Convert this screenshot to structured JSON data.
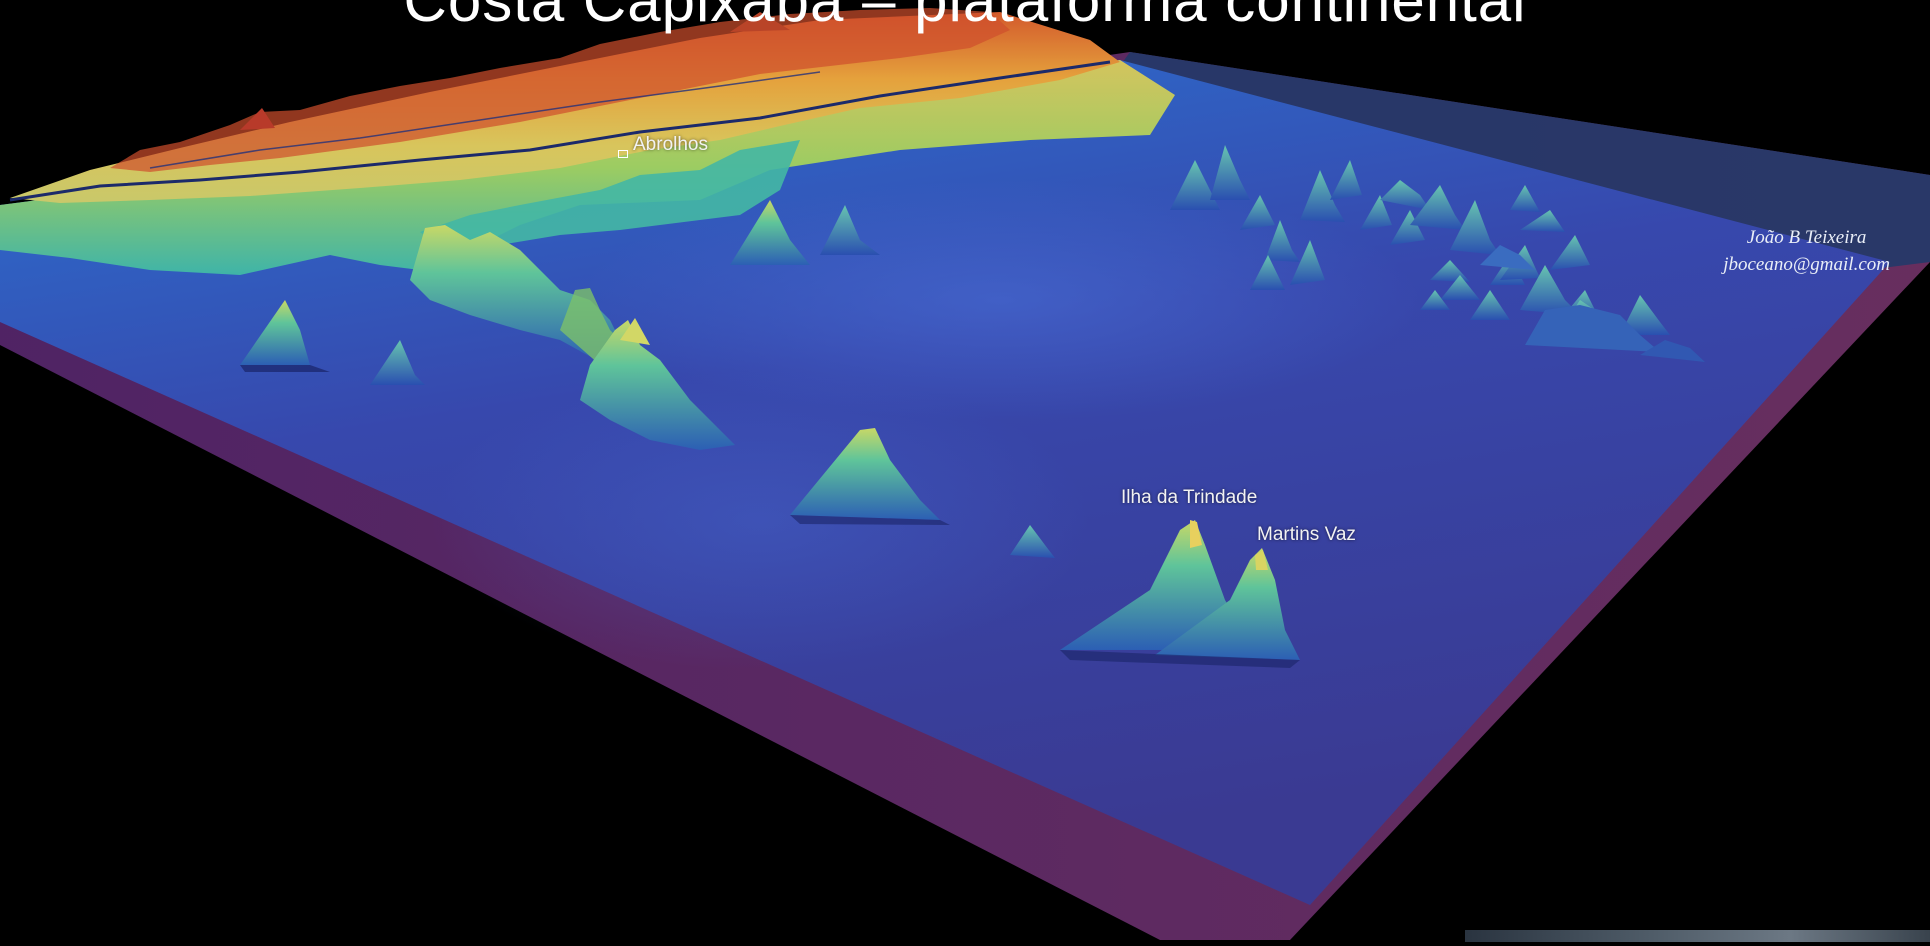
{
  "page": {
    "title": "Costa Capixaba – plataforma continental"
  },
  "map": {
    "labels": {
      "abrolhos": "Abrolhos",
      "ilha_da_trindade": "Ilha da Trindade",
      "martins_vaz": "Martins Vaz"
    },
    "credit": {
      "name": "João B Teixeira",
      "email": "jboceano@gmail.com"
    },
    "colors": {
      "background": "#000000",
      "deep_ocean": "#3a3b9a",
      "shelf": "#d8c05a",
      "highlands": "#c8452a",
      "seamount_top": "#7fcf6a",
      "border": "#7a3a8c"
    }
  }
}
